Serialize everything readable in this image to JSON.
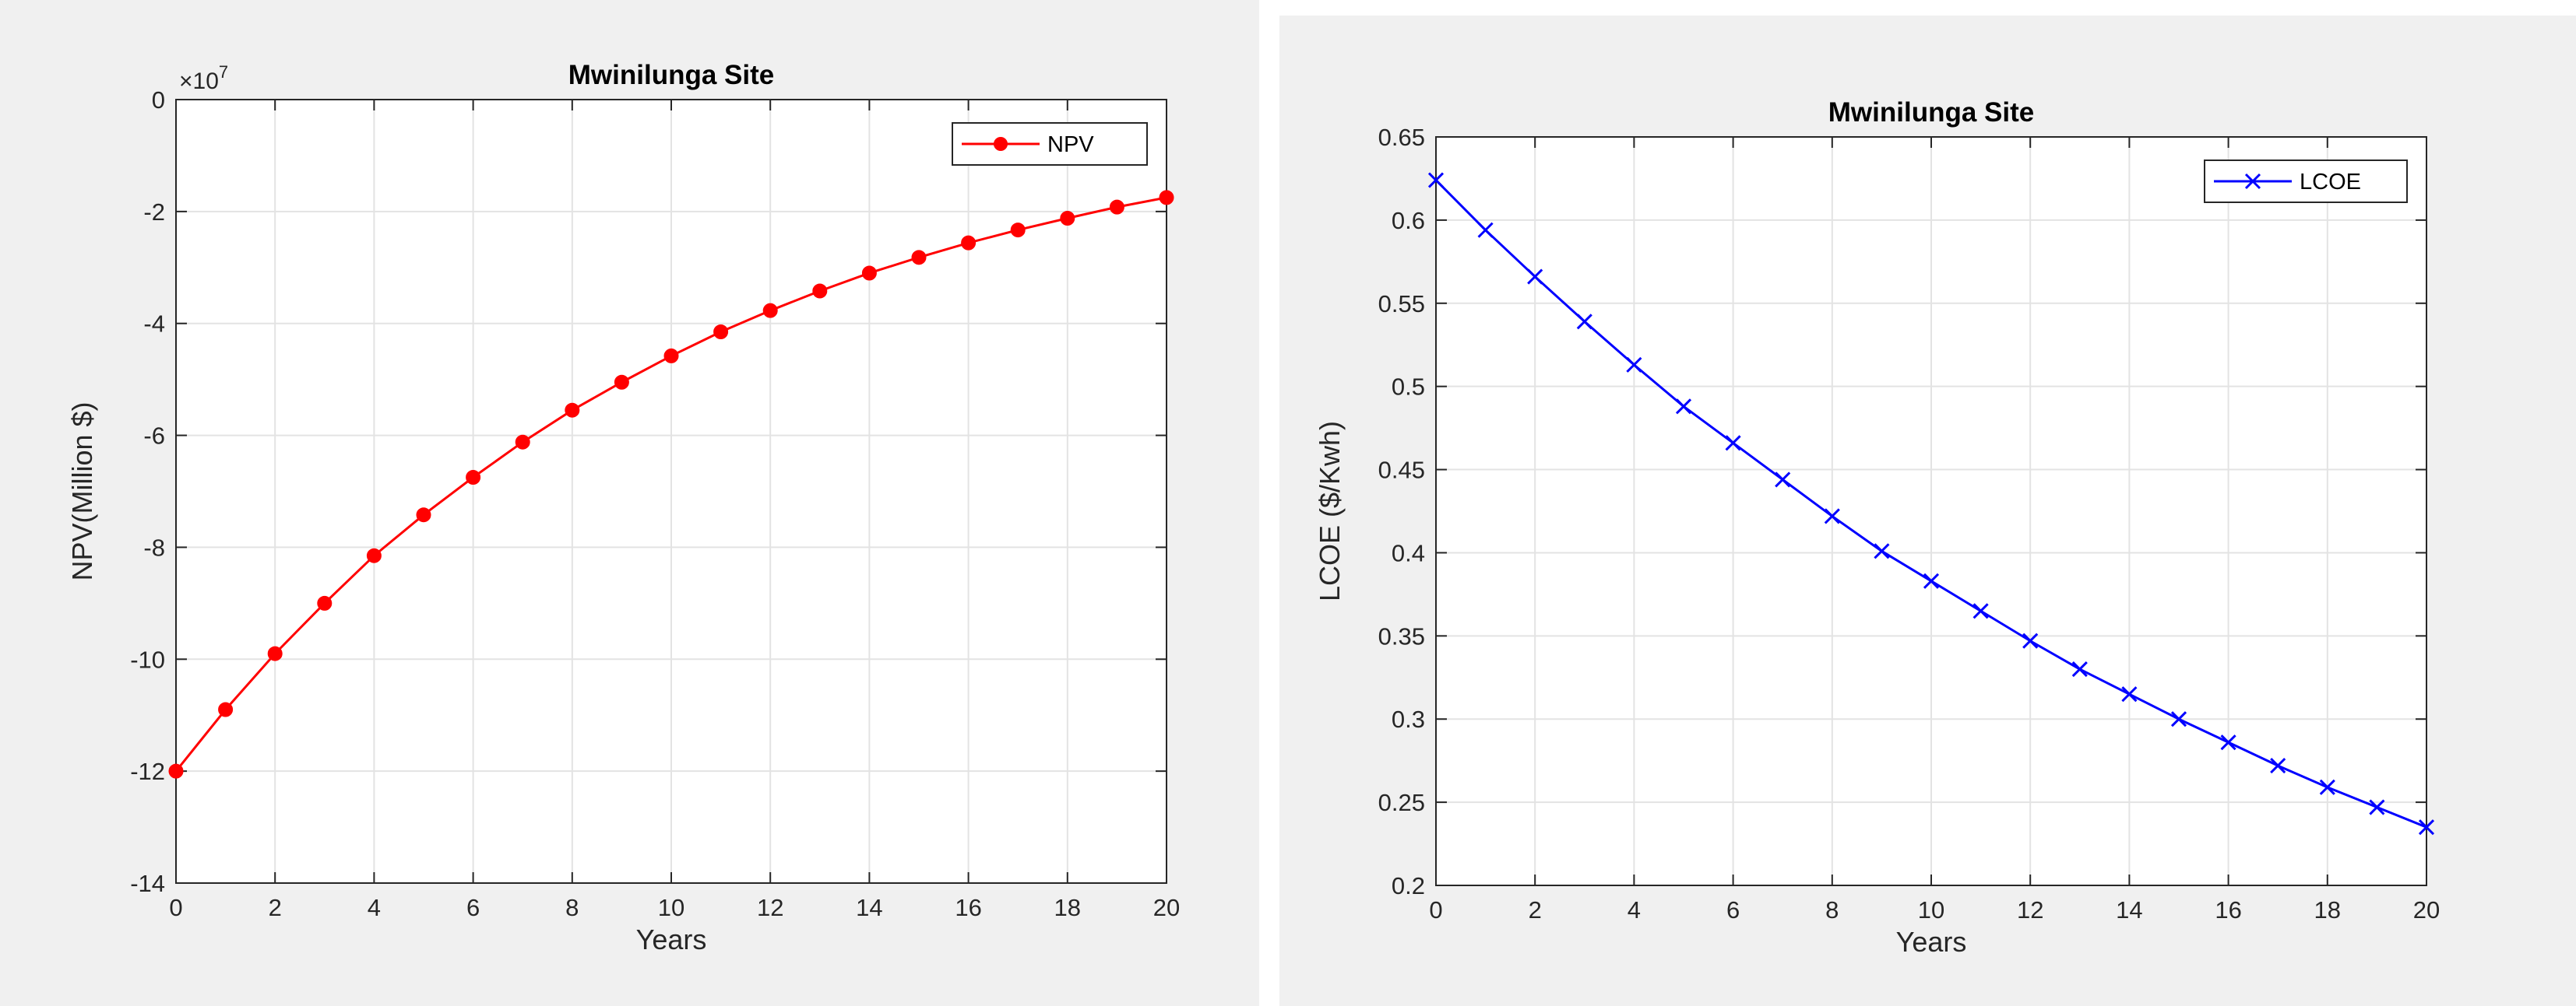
{
  "chart_data": [
    {
      "type": "line",
      "title": "Mwinilunga Site",
      "xlabel": "Years",
      "ylabel": "NPV(Million $)",
      "y_exponent_prefix": "×10",
      "y_exponent_power": "7",
      "xlim": [
        0,
        20
      ],
      "ylim": [
        -14,
        0
      ],
      "xticks": [
        0,
        2,
        4,
        6,
        8,
        10,
        12,
        14,
        16,
        18,
        20
      ],
      "yticks": [
        0,
        -2,
        -4,
        -6,
        -8,
        -10,
        -12,
        -14
      ],
      "grid": true,
      "legend_position": "top-right",
      "x": [
        0,
        1,
        2,
        3,
        4,
        5,
        6,
        7,
        8,
        9,
        10,
        11,
        12,
        13,
        14,
        15,
        16,
        17,
        18,
        19,
        20
      ],
      "series": [
        {
          "name": "NPV",
          "color": "#ff0000",
          "marker": "dot",
          "values": [
            -12.0,
            -10.9,
            -9.9,
            -9.0,
            -8.15,
            -7.42,
            -6.75,
            -6.12,
            -5.55,
            -5.05,
            -4.58,
            -4.15,
            -3.77,
            -3.42,
            -3.1,
            -2.82,
            -2.56,
            -2.33,
            -2.12,
            -1.92,
            -1.75
          ]
        }
      ]
    },
    {
      "type": "line",
      "title": "Mwinilunga Site",
      "xlabel": "Years",
      "ylabel": "LCOE ($/Kwh)",
      "xlim": [
        0,
        20
      ],
      "ylim": [
        0.2,
        0.65
      ],
      "xticks": [
        0,
        2,
        4,
        6,
        8,
        10,
        12,
        14,
        16,
        18,
        20
      ],
      "yticks": [
        0.65,
        0.6,
        0.55,
        0.5,
        0.45,
        0.4,
        0.35,
        0.3,
        0.25,
        0.2
      ],
      "grid": true,
      "legend_position": "top-right",
      "x": [
        0,
        1,
        2,
        3,
        4,
        5,
        6,
        7,
        8,
        9,
        10,
        11,
        12,
        13,
        14,
        15,
        16,
        17,
        18,
        19,
        20
      ],
      "series": [
        {
          "name": "LCOE",
          "color": "#0000ff",
          "marker": "x",
          "values": [
            0.624,
            0.594,
            0.566,
            0.539,
            0.513,
            0.488,
            0.466,
            0.444,
            0.422,
            0.401,
            0.383,
            0.365,
            0.347,
            0.33,
            0.315,
            0.3,
            0.286,
            0.272,
            0.259,
            0.247,
            0.235
          ]
        }
      ]
    }
  ]
}
